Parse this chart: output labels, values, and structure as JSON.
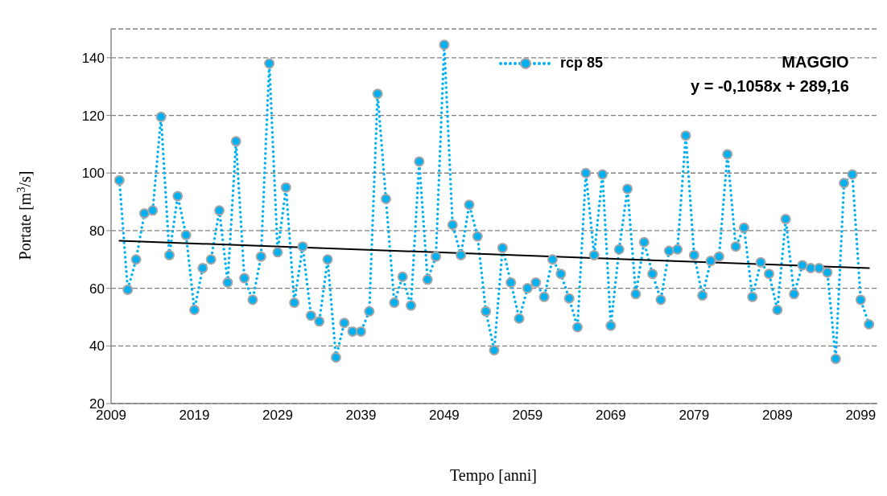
{
  "chart_data": {
    "type": "line",
    "title": "MAGGIO",
    "xlabel": "Tempo [anni]",
    "ylabel": "Portate [m$^{3}$/s]",
    "annotations": [
      "y = -0,1058x + 289,16"
    ],
    "x": [
      2010,
      2011,
      2012,
      2013,
      2014,
      2015,
      2016,
      2017,
      2018,
      2019,
      2020,
      2021,
      2022,
      2023,
      2024,
      2025,
      2026,
      2027,
      2028,
      2029,
      2030,
      2031,
      2032,
      2033,
      2034,
      2035,
      2036,
      2037,
      2038,
      2039,
      2040,
      2041,
      2042,
      2043,
      2044,
      2045,
      2046,
      2047,
      2048,
      2049,
      2050,
      2051,
      2052,
      2053,
      2054,
      2055,
      2056,
      2057,
      2058,
      2059,
      2060,
      2061,
      2062,
      2063,
      2064,
      2065,
      2066,
      2067,
      2068,
      2069,
      2070,
      2071,
      2072,
      2073,
      2074,
      2075,
      2076,
      2077,
      2078,
      2079,
      2080,
      2081,
      2082,
      2083,
      2084,
      2085,
      2086,
      2087,
      2088,
      2089,
      2090,
      2091,
      2092,
      2093,
      2094,
      2095,
      2096,
      2097,
      2098,
      2099,
      2100
    ],
    "series": [
      {
        "name": "rcp 85",
        "color": "#00b0f0",
        "marker": "circle",
        "line_style": "dotted",
        "values": [
          97.5,
          59.5,
          70,
          86,
          87,
          119.5,
          71.5,
          92,
          78.5,
          52.5,
          67,
          70,
          87,
          62,
          111,
          63.5,
          56,
          71,
          138,
          72.5,
          95,
          55,
          74.5,
          50.5,
          48.5,
          70,
          36,
          48,
          45,
          45,
          52,
          127.5,
          91,
          55,
          64,
          54,
          104,
          63,
          71,
          144.5,
          82,
          71.5,
          89,
          78,
          52,
          38.5,
          74,
          62,
          49.5,
          60,
          62,
          57,
          70,
          65,
          56.5,
          46.5,
          100,
          71.5,
          99.5,
          47,
          73.5,
          94.5,
          58,
          76,
          65,
          56,
          73,
          73.5,
          113,
          71.5,
          57.5,
          69.5,
          71,
          106.5,
          74.5,
          81,
          57,
          69,
          65,
          52.5,
          84,
          58,
          68,
          67,
          67,
          65.5,
          35.5,
          96.5,
          99.5,
          56,
          47.5
        ]
      },
      {
        "type": "line",
        "color": "#000000",
        "marker": "none",
        "line_style": "solid",
        "x": [
          2010,
          2100
        ],
        "values": [
          76.5,
          67.0
        ]
      }
    ],
    "xlim": [
      2009,
      2101
    ],
    "xticks": [
      2009,
      2019,
      2029,
      2039,
      2049,
      2059,
      2069,
      2079,
      2089,
      2099
    ],
    "ylim": [
      20,
      150
    ],
    "yticks": [
      20,
      40,
      60,
      80,
      100,
      120,
      140
    ],
    "grid": "y",
    "legend": "top"
  }
}
